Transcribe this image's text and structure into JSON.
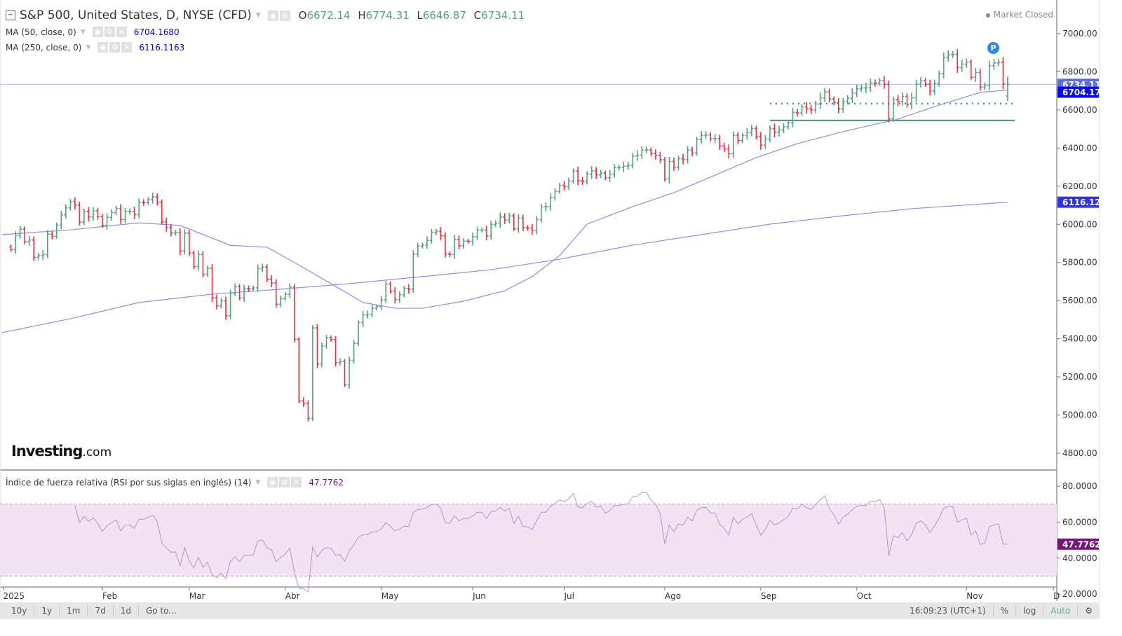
{
  "header": {
    "title": "S&P 500, United States, D, NYSE (CFD)",
    "open_label": "O",
    "open": "6672.14",
    "high_label": "H",
    "high": "6774.31",
    "low_label": "L",
    "low": "6646.87",
    "close_label": "C",
    "close": "6734.11",
    "market_status": "Market Closed"
  },
  "indicators": {
    "ma50": {
      "label": "MA (50, close, 0)",
      "value": "6704.1680",
      "color": "#0000ff"
    },
    "ma250": {
      "label": "MA (250, close, 0)",
      "value": "6116.1163",
      "color": "#0000ff"
    },
    "rsi": {
      "label": "Índice de fuerza relativa (RSI por sus siglas en inglés) (14)",
      "value": "47.7762",
      "color": "#7b1f7f"
    }
  },
  "logo": {
    "main": "Investing",
    "suffix": ".com"
  },
  "badge": "P",
  "price_labels": {
    "last": "6734.11",
    "ma50": "6704.17",
    "ma250": "6116.12",
    "rsi": "47.7762"
  },
  "toolbar": {
    "ranges": [
      "10y",
      "1y",
      "1m",
      "7d",
      "1d"
    ],
    "goto": "Go to...",
    "time": "16:09:23 (UTC+1)",
    "percent": "%",
    "log": "log",
    "auto": "Auto"
  },
  "chart_data": {
    "type": "ohlc",
    "title": "S&P 500, United States, D, NYSE (CFD)",
    "colors": {
      "up": "#53a37a",
      "down": "#e8333f",
      "ma": "#8c8cf5",
      "rsi": "#c08fce",
      "rsi_band": "#f1e3f1"
    },
    "ylim": [
      4720,
      7090
    ],
    "yticks": [
      7000,
      6800,
      6600,
      6400,
      6200,
      6000,
      5800,
      5600,
      5400,
      5200,
      5000,
      4800
    ],
    "ytick_labels": [
      "7000.00",
      "6800.00",
      "6600.00",
      "6400.00",
      "6200.00",
      "6000.00",
      "5800.00",
      "5600.00",
      "5400.00",
      "5200.00",
      "5000.00",
      "4800.00"
    ],
    "xticks": [
      {
        "label": "2025",
        "index": -1.7
      },
      {
        "label": "Feb",
        "index": 20
      },
      {
        "label": "Mar",
        "index": 39
      },
      {
        "label": "Abr",
        "index": 60
      },
      {
        "label": "May",
        "index": 81
      },
      {
        "label": "Jun",
        "index": 101
      },
      {
        "label": "Jul",
        "index": 121
      },
      {
        "label": "Ago",
        "index": 143
      },
      {
        "label": "Sep",
        "index": 164
      },
      {
        "label": "Oct",
        "index": 185
      },
      {
        "label": "Nov",
        "index": 209
      },
      {
        "label": "D",
        "index": 228
      }
    ],
    "first_open": 5882,
    "last_bar": {
      "open": 6672.14,
      "high": 6774.31,
      "low": 6646.87,
      "close": 6734.11
    },
    "closes": [
      5868,
      5942,
      5975,
      5909,
      5918,
      5827,
      5836,
      5842,
      5949,
      5937,
      5996,
      6049,
      6086,
      6118,
      6101,
      6012,
      6067,
      6039,
      6071,
      6040,
      5994,
      6037,
      6061,
      6083,
      6025,
      6066,
      6068,
      6051,
      6115,
      6114,
      6129,
      6144,
      6117,
      6013,
      5983,
      5955,
      5956,
      5861,
      5954,
      5849,
      5778,
      5842,
      5738,
      5770,
      5614,
      5572,
      5599,
      5521,
      5639,
      5675,
      5614,
      5663,
      5662,
      5667,
      5768,
      5776,
      5712,
      5693,
      5581,
      5611,
      5633,
      5671,
      5397,
      5074,
      5062,
      4982,
      5457,
      5268,
      5363,
      5406,
      5396,
      5275,
      5282,
      5158,
      5287,
      5376,
      5485,
      5525,
      5529,
      5560,
      5569,
      5604,
      5687,
      5650,
      5606,
      5631,
      5664,
      5660,
      5844,
      5886,
      5892,
      5916,
      5958,
      5963,
      5940,
      5844,
      5842,
      5921,
      5888,
      5912,
      5911,
      5935,
      5970,
      5970,
      5939,
      6000,
      6006,
      6038,
      6022,
      6045,
      5977,
      6033,
      5982,
      5980,
      5967,
      6025,
      6092,
      6092,
      6141,
      6173,
      6205,
      6198,
      6227,
      6279,
      6229,
      6225,
      6263,
      6280,
      6259,
      6269,
      6244,
      6263,
      6297,
      6297,
      6305,
      6309,
      6358,
      6363,
      6389,
      6390,
      6371,
      6362,
      6339,
      6238,
      6330,
      6299,
      6345,
      6340,
      6389,
      6374,
      6445,
      6466,
      6469,
      6449,
      6449,
      6411,
      6395,
      6370,
      6466,
      6439,
      6466,
      6481,
      6502,
      6460,
      6416,
      6448,
      6502,
      6482,
      6495,
      6512,
      6532,
      6587,
      6584,
      6616,
      6606,
      6600,
      6631,
      6664,
      6694,
      6657,
      6638,
      6605,
      6644,
      6661,
      6688,
      6711,
      6715,
      6716,
      6741,
      6740,
      6754,
      6735,
      6553,
      6654,
      6644,
      6671,
      6629,
      6664,
      6735,
      6753,
      6735,
      6699,
      6738,
      6791,
      6875,
      6890,
      6891,
      6822,
      6840,
      6851,
      6771,
      6796,
      6720,
      6728,
      6832,
      6846,
      6850,
      6737,
      6734.11
    ],
    "ma50": [
      [
        -2,
        5946
      ],
      [
        13,
        5971
      ],
      [
        28,
        6008
      ],
      [
        37,
        5994
      ],
      [
        48,
        5890
      ],
      [
        56,
        5880
      ],
      [
        62,
        5800
      ],
      [
        70,
        5689
      ],
      [
        77,
        5590
      ],
      [
        84,
        5560
      ],
      [
        90,
        5560
      ],
      [
        99,
        5597
      ],
      [
        108,
        5652
      ],
      [
        114,
        5726
      ],
      [
        120,
        5836
      ],
      [
        126,
        6001
      ],
      [
        136,
        6093
      ],
      [
        145,
        6166
      ],
      [
        154,
        6258
      ],
      [
        163,
        6350
      ],
      [
        172,
        6423
      ],
      [
        182,
        6486
      ],
      [
        194,
        6552
      ],
      [
        203,
        6625
      ],
      [
        212,
        6692
      ],
      [
        218,
        6704.17
      ]
    ],
    "ma250": [
      [
        -2,
        5432
      ],
      [
        13,
        5505
      ],
      [
        28,
        5590
      ],
      [
        44,
        5634
      ],
      [
        59,
        5660
      ],
      [
        74,
        5689
      ],
      [
        90,
        5726
      ],
      [
        105,
        5762
      ],
      [
        120,
        5817
      ],
      [
        136,
        5891
      ],
      [
        151,
        5946
      ],
      [
        166,
        6001
      ],
      [
        182,
        6045
      ],
      [
        197,
        6082
      ],
      [
        218,
        6116.12
      ]
    ],
    "support_lines": [
      {
        "value": 6633,
        "style": "dotted",
        "from_index": 166
      },
      {
        "value": 6545,
        "style": "solid",
        "from_index": 166
      }
    ],
    "rsi": {
      "period": 14,
      "ylim": [
        16,
        83
      ],
      "yticks": [
        80,
        60,
        40,
        20
      ],
      "ytick_labels": [
        "80.0000",
        "60.0000",
        "40.0000",
        "20.0000"
      ],
      "band": [
        30,
        70
      ],
      "last": 47.7762
    }
  }
}
